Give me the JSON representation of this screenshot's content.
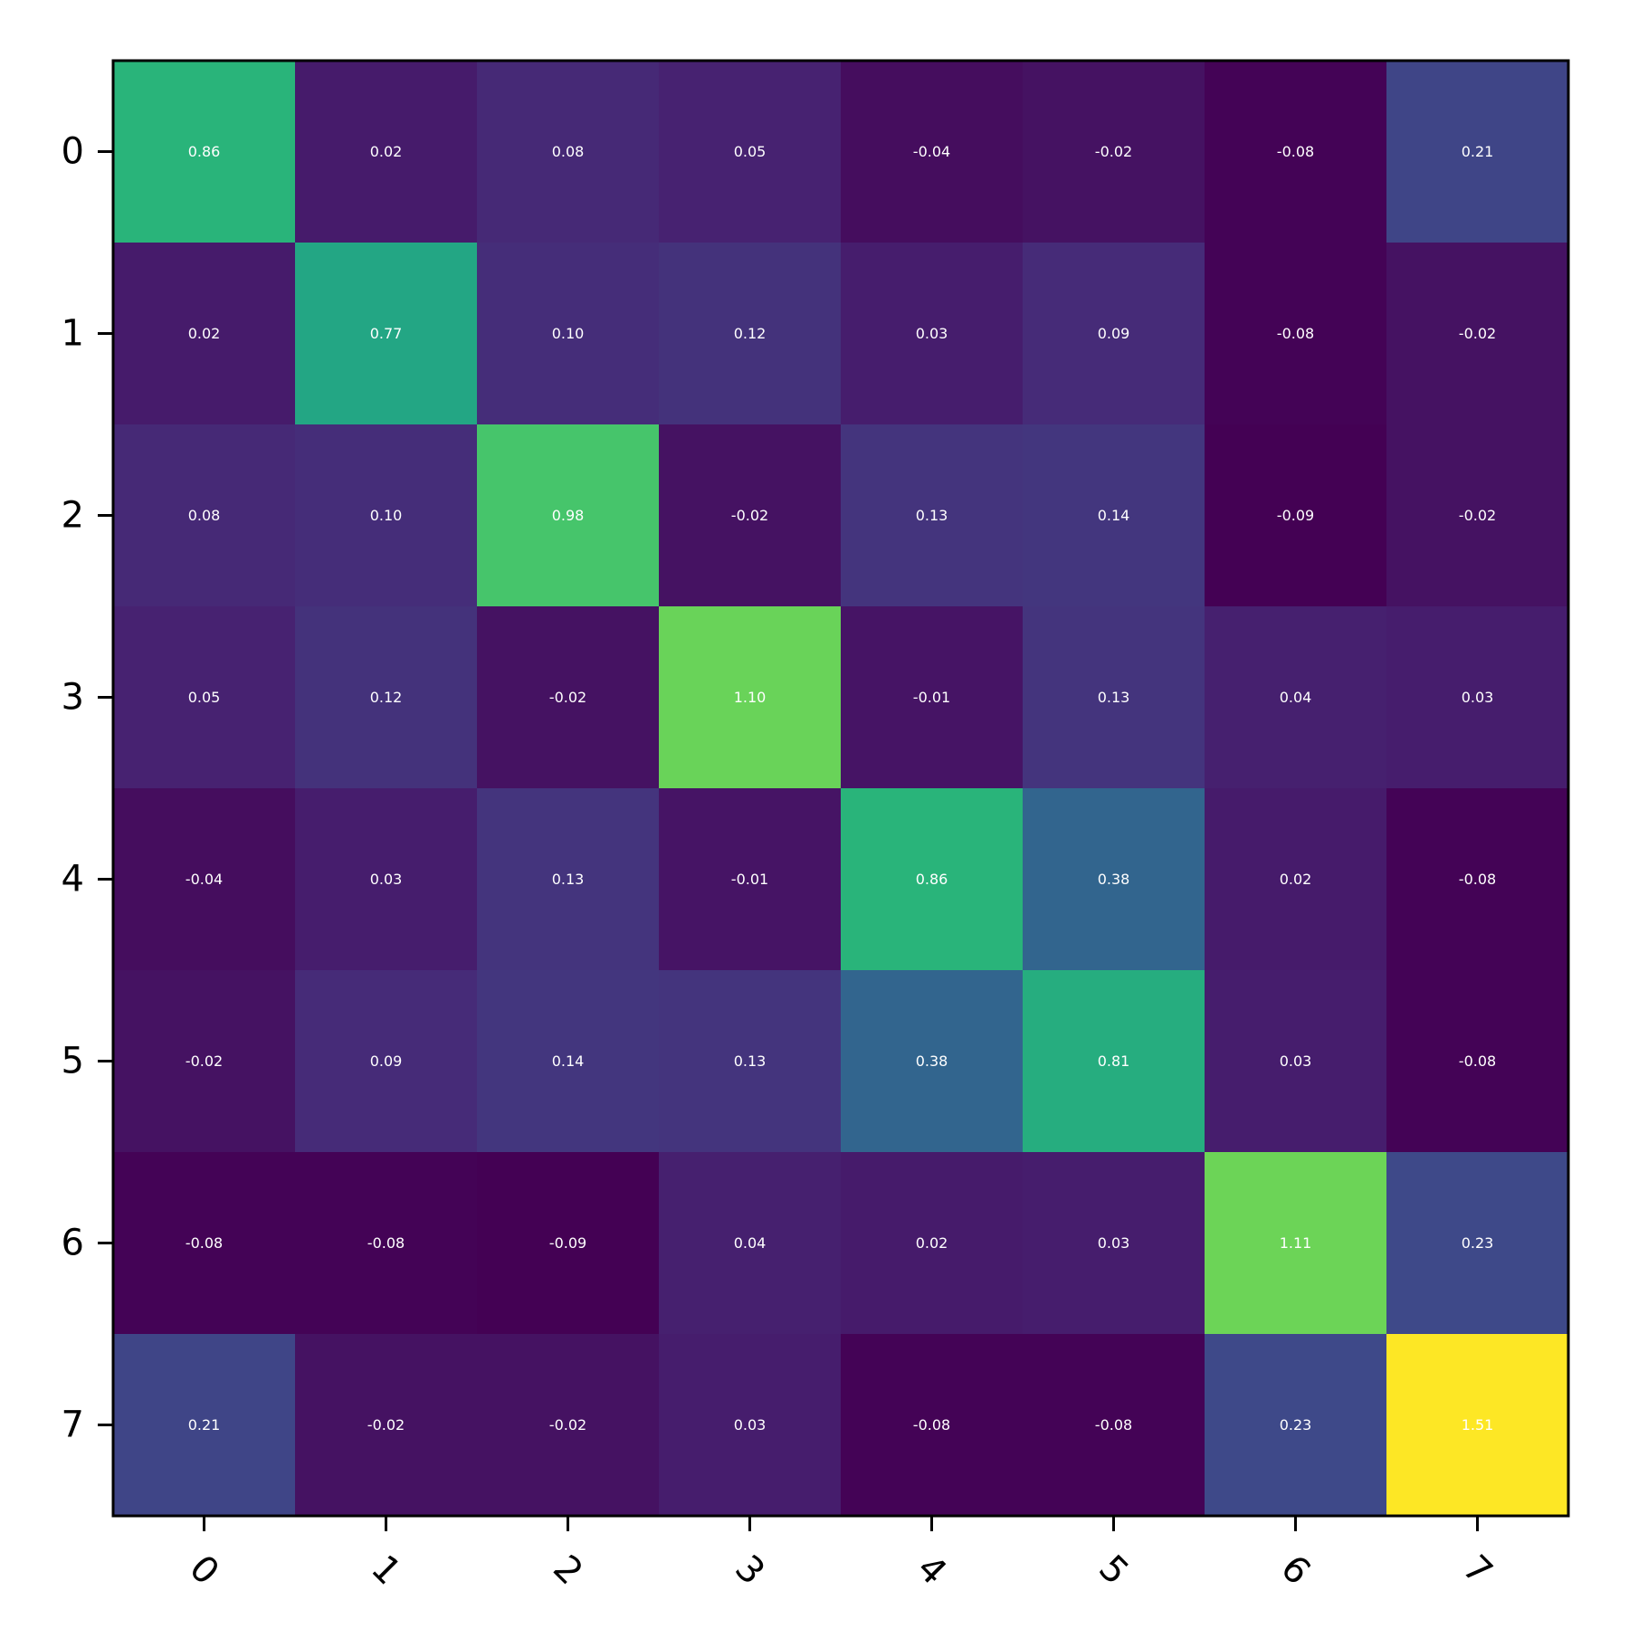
{
  "chart_data": {
    "type": "heatmap",
    "title": "",
    "xlabel": "",
    "ylabel": "",
    "colormap": "viridis",
    "value_range": [
      -0.09,
      1.51
    ],
    "grid": false,
    "x_categories": [
      "0",
      "1",
      "2",
      "3",
      "4",
      "5",
      "6",
      "7"
    ],
    "y_categories": [
      "0",
      "1",
      "2",
      "3",
      "4",
      "5",
      "6",
      "7"
    ],
    "x_tick_rotation": "45 degrees",
    "cell_text_color": "#ffffff",
    "values": [
      [
        0.86,
        0.02,
        0.08,
        0.05,
        -0.04,
        -0.02,
        -0.08,
        0.21
      ],
      [
        0.02,
        0.77,
        0.1,
        0.12,
        0.03,
        0.09,
        -0.08,
        -0.02
      ],
      [
        0.08,
        0.1,
        0.98,
        -0.02,
        0.13,
        0.14,
        -0.09,
        -0.02
      ],
      [
        0.05,
        0.12,
        -0.02,
        1.1,
        -0.01,
        0.13,
        0.04,
        0.03
      ],
      [
        -0.04,
        0.03,
        0.13,
        -0.01,
        0.86,
        0.38,
        0.02,
        -0.08
      ],
      [
        -0.02,
        0.09,
        0.14,
        0.13,
        0.38,
        0.81,
        0.03,
        -0.08
      ],
      [
        -0.08,
        -0.08,
        -0.09,
        0.04,
        0.02,
        0.03,
        1.11,
        0.23
      ],
      [
        0.21,
        -0.02,
        -0.02,
        0.03,
        -0.08,
        -0.08,
        0.23,
        1.51
      ]
    ],
    "value_labels": [
      [
        "0.86",
        "0.02",
        "0.08",
        "0.05",
        "-0.04",
        "-0.02",
        "-0.08",
        "0.21"
      ],
      [
        "0.02",
        "0.77",
        "0.10",
        "0.12",
        "0.03",
        "0.09",
        "-0.08",
        "-0.02"
      ],
      [
        "0.08",
        "0.10",
        "0.98",
        "-0.02",
        "0.13",
        "0.14",
        "-0.09",
        "-0.02"
      ],
      [
        "0.05",
        "0.12",
        "-0.02",
        "1.10",
        "-0.01",
        "0.13",
        "0.04",
        "0.03"
      ],
      [
        "-0.04",
        "0.03",
        "0.13",
        "-0.01",
        "0.86",
        "0.38",
        "0.02",
        "-0.08"
      ],
      [
        "-0.02",
        "0.09",
        "0.14",
        "0.13",
        "0.38",
        "0.81",
        "0.03",
        "-0.08"
      ],
      [
        "-0.08",
        "-0.08",
        "-0.09",
        "0.04",
        "0.02",
        "0.03",
        "1.11",
        "0.23"
      ],
      [
        "0.21",
        "-0.02",
        "-0.02",
        "0.03",
        "-0.08",
        "-0.08",
        "0.23",
        "1.51"
      ]
    ]
  }
}
